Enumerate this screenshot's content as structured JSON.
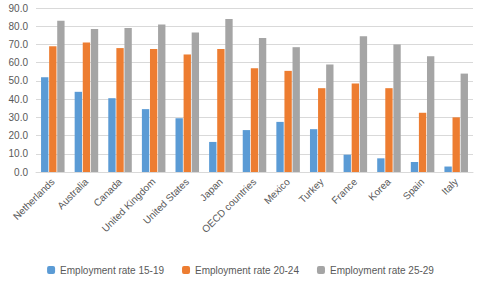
{
  "chart_data": {
    "type": "bar",
    "categories": [
      "Netherlands",
      "Australia",
      "Canada",
      "United Kingdom",
      "United States",
      "Japan",
      "OECD countries",
      "Mexico",
      "Turkey",
      "France",
      "Korea",
      "Spain",
      "Italy"
    ],
    "series": [
      {
        "name": "Employment rate 15-19",
        "color": "#5b9bd5",
        "values": [
          52,
          44,
          40.5,
          34.5,
          29.5,
          16.5,
          23,
          27.5,
          23.5,
          9.5,
          7.5,
          5.5,
          3
        ]
      },
      {
        "name": "Employment rate 20-24",
        "color": "#ed7d31",
        "values": [
          69,
          71,
          68,
          67.5,
          64.5,
          67.5,
          57,
          55.5,
          46,
          48.5,
          46,
          32.5,
          30
        ]
      },
      {
        "name": "Employment rate 25-29",
        "color": "#a5a5a5",
        "values": [
          83,
          78.5,
          79,
          81,
          76.5,
          84,
          73.5,
          68.5,
          59,
          74.5,
          70,
          63.5,
          54
        ]
      }
    ],
    "ylim": [
      0,
      90
    ],
    "yticks": [
      {
        "value": 0,
        "label": "0.0"
      },
      {
        "value": 10,
        "label": "10.0"
      },
      {
        "value": 20,
        "label": "20.0"
      },
      {
        "value": 30,
        "label": "30.0"
      },
      {
        "value": 40,
        "label": "40.0"
      },
      {
        "value": 50,
        "label": "50.0"
      },
      {
        "value": 60,
        "label": "60.0"
      },
      {
        "value": 70,
        "label": "70.0"
      },
      {
        "value": 80,
        "label": "80.0"
      },
      {
        "value": 90,
        "label": "90.0"
      }
    ],
    "grid": true,
    "legend": "bottom"
  }
}
